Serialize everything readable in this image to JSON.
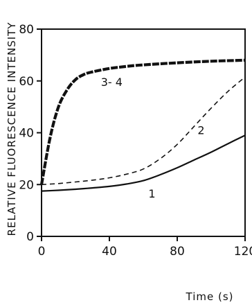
{
  "chart_data": {
    "type": "line",
    "xlabel": "Time (s)",
    "ylabel": "RELATIVE FLUORESCENCE INTENSITY",
    "xlim": [
      0,
      120
    ],
    "ylim": [
      0,
      80
    ],
    "x_ticks": [
      0,
      40,
      80,
      120
    ],
    "y_ticks": [
      0,
      20,
      40,
      60,
      80
    ],
    "x_tick_labels": [
      "0",
      "40",
      "80",
      "120"
    ],
    "y_tick_labels": [
      "0",
      "20",
      "40",
      "60",
      "80"
    ],
    "grid": false,
    "series": [
      {
        "name": "1",
        "style": "solid",
        "x": [
          0,
          10,
          20,
          30,
          40,
          50,
          60,
          70,
          80,
          90,
          100,
          110,
          120
        ],
        "y": [
          17.5,
          17.8,
          18.2,
          18.7,
          19.3,
          20.2,
          21.5,
          23.8,
          26.5,
          29.5,
          32.5,
          35.8,
          39
        ]
      },
      {
        "name": "2",
        "style": "dashed",
        "x": [
          0,
          10,
          20,
          30,
          40,
          50,
          60,
          70,
          80,
          90,
          100,
          110,
          120
        ],
        "y": [
          20,
          20.4,
          21,
          21.7,
          22.6,
          24,
          26,
          30,
          35.5,
          42.5,
          49.5,
          56,
          61.5
        ]
      },
      {
        "name": "3- 4",
        "style": "thick-dashed",
        "x": [
          0,
          5,
          10,
          15,
          20,
          25,
          30,
          40,
          50,
          60,
          80,
          100,
          120
        ],
        "y": [
          20,
          38,
          50,
          56.5,
          60.5,
          62.5,
          63.5,
          64.8,
          65.6,
          66.2,
          67,
          67.6,
          68
        ]
      }
    ]
  }
}
